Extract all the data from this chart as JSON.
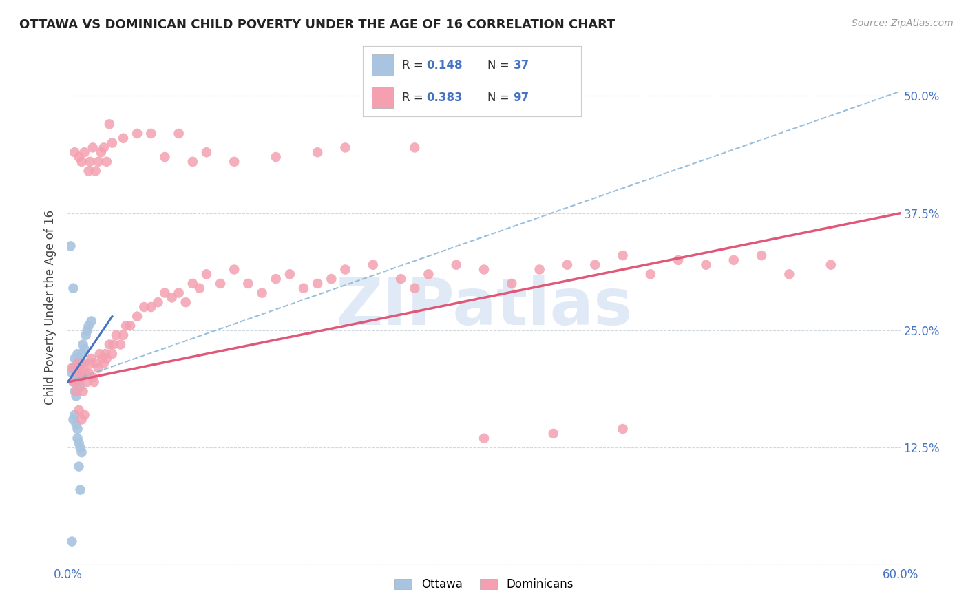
{
  "title": "OTTAWA VS DOMINICAN CHILD POVERTY UNDER THE AGE OF 16 CORRELATION CHART",
  "source": "Source: ZipAtlas.com",
  "ylabel": "Child Poverty Under the Age of 16",
  "xlim": [
    0.0,
    0.6
  ],
  "ylim": [
    0.0,
    0.55
  ],
  "ytick_pos": [
    0.0,
    0.125,
    0.25,
    0.375,
    0.5
  ],
  "ytick_labels": [
    "",
    "12.5%",
    "25.0%",
    "37.5%",
    "50.0%"
  ],
  "xtick_pos": [
    0.0,
    0.1,
    0.2,
    0.3,
    0.4,
    0.5,
    0.6
  ],
  "xtick_labels": [
    "0.0%",
    "",
    "",
    "",
    "",
    "",
    "60.0%"
  ],
  "legend_label1": "Ottawa",
  "legend_label2": "Dominicans",
  "ottawa_color": "#a8c4e0",
  "dominican_color": "#f4a0b0",
  "trendline_ottawa_color": "#4472c4",
  "trendline_dominican_color": "#e05878",
  "watermark": "ZIPatlas",
  "watermark_color": "#c8d8f0",
  "background_color": "#ffffff",
  "ottawa_trendline": [
    [
      0.0,
      0.195
    ],
    [
      0.032,
      0.265
    ]
  ],
  "dominican_trendline": [
    [
      0.0,
      0.195
    ],
    [
      0.6,
      0.375
    ]
  ],
  "dashed_trendline": [
    [
      0.0,
      0.195
    ],
    [
      0.6,
      0.505
    ]
  ],
  "ottawa_points": [
    [
      0.003,
      0.205
    ],
    [
      0.004,
      0.21
    ],
    [
      0.004,
      0.195
    ],
    [
      0.005,
      0.22
    ],
    [
      0.005,
      0.21
    ],
    [
      0.005,
      0.185
    ],
    [
      0.006,
      0.205
    ],
    [
      0.006,
      0.2
    ],
    [
      0.006,
      0.18
    ],
    [
      0.007,
      0.215
    ],
    [
      0.007,
      0.21
    ],
    [
      0.007,
      0.225
    ],
    [
      0.008,
      0.22
    ],
    [
      0.008,
      0.215
    ],
    [
      0.009,
      0.2
    ],
    [
      0.009,
      0.19
    ],
    [
      0.01,
      0.225
    ],
    [
      0.01,
      0.215
    ],
    [
      0.011,
      0.235
    ],
    [
      0.012,
      0.23
    ],
    [
      0.013,
      0.245
    ],
    [
      0.014,
      0.25
    ],
    [
      0.015,
      0.255
    ],
    [
      0.017,
      0.26
    ],
    [
      0.004,
      0.155
    ],
    [
      0.005,
      0.16
    ],
    [
      0.006,
      0.15
    ],
    [
      0.007,
      0.145
    ],
    [
      0.007,
      0.135
    ],
    [
      0.008,
      0.13
    ],
    [
      0.009,
      0.125
    ],
    [
      0.01,
      0.12
    ],
    [
      0.004,
      0.295
    ],
    [
      0.002,
      0.34
    ],
    [
      0.008,
      0.105
    ],
    [
      0.009,
      0.08
    ],
    [
      0.003,
      0.025
    ]
  ],
  "dominican_points": [
    [
      0.003,
      0.21
    ],
    [
      0.005,
      0.195
    ],
    [
      0.006,
      0.185
    ],
    [
      0.007,
      0.215
    ],
    [
      0.008,
      0.205
    ],
    [
      0.008,
      0.195
    ],
    [
      0.009,
      0.21
    ],
    [
      0.01,
      0.2
    ],
    [
      0.011,
      0.185
    ],
    [
      0.012,
      0.215
    ],
    [
      0.013,
      0.205
    ],
    [
      0.014,
      0.195
    ],
    [
      0.015,
      0.205
    ],
    [
      0.016,
      0.215
    ],
    [
      0.017,
      0.22
    ],
    [
      0.018,
      0.2
    ],
    [
      0.019,
      0.195
    ],
    [
      0.02,
      0.215
    ],
    [
      0.022,
      0.21
    ],
    [
      0.023,
      0.225
    ],
    [
      0.025,
      0.22
    ],
    [
      0.026,
      0.215
    ],
    [
      0.027,
      0.225
    ],
    [
      0.028,
      0.22
    ],
    [
      0.03,
      0.235
    ],
    [
      0.032,
      0.225
    ],
    [
      0.033,
      0.235
    ],
    [
      0.035,
      0.245
    ],
    [
      0.038,
      0.235
    ],
    [
      0.04,
      0.245
    ],
    [
      0.042,
      0.255
    ],
    [
      0.045,
      0.255
    ],
    [
      0.05,
      0.265
    ],
    [
      0.055,
      0.275
    ],
    [
      0.06,
      0.275
    ],
    [
      0.065,
      0.28
    ],
    [
      0.07,
      0.29
    ],
    [
      0.075,
      0.285
    ],
    [
      0.08,
      0.29
    ],
    [
      0.085,
      0.28
    ],
    [
      0.09,
      0.3
    ],
    [
      0.095,
      0.295
    ],
    [
      0.1,
      0.31
    ],
    [
      0.11,
      0.3
    ],
    [
      0.12,
      0.315
    ],
    [
      0.13,
      0.3
    ],
    [
      0.14,
      0.29
    ],
    [
      0.15,
      0.305
    ],
    [
      0.16,
      0.31
    ],
    [
      0.17,
      0.295
    ],
    [
      0.18,
      0.3
    ],
    [
      0.19,
      0.305
    ],
    [
      0.2,
      0.315
    ],
    [
      0.22,
      0.32
    ],
    [
      0.24,
      0.305
    ],
    [
      0.25,
      0.295
    ],
    [
      0.26,
      0.31
    ],
    [
      0.28,
      0.32
    ],
    [
      0.3,
      0.315
    ],
    [
      0.32,
      0.3
    ],
    [
      0.34,
      0.315
    ],
    [
      0.36,
      0.32
    ],
    [
      0.38,
      0.32
    ],
    [
      0.4,
      0.33
    ],
    [
      0.42,
      0.31
    ],
    [
      0.44,
      0.325
    ],
    [
      0.46,
      0.32
    ],
    [
      0.48,
      0.325
    ],
    [
      0.5,
      0.33
    ],
    [
      0.52,
      0.31
    ],
    [
      0.55,
      0.32
    ],
    [
      0.005,
      0.44
    ],
    [
      0.008,
      0.435
    ],
    [
      0.01,
      0.43
    ],
    [
      0.012,
      0.44
    ],
    [
      0.015,
      0.42
    ],
    [
      0.016,
      0.43
    ],
    [
      0.018,
      0.445
    ],
    [
      0.02,
      0.42
    ],
    [
      0.022,
      0.43
    ],
    [
      0.024,
      0.44
    ],
    [
      0.026,
      0.445
    ],
    [
      0.028,
      0.43
    ],
    [
      0.03,
      0.47
    ],
    [
      0.032,
      0.45
    ],
    [
      0.04,
      0.455
    ],
    [
      0.05,
      0.46
    ],
    [
      0.06,
      0.46
    ],
    [
      0.07,
      0.435
    ],
    [
      0.08,
      0.46
    ],
    [
      0.09,
      0.43
    ],
    [
      0.1,
      0.44
    ],
    [
      0.12,
      0.43
    ],
    [
      0.15,
      0.435
    ],
    [
      0.18,
      0.44
    ],
    [
      0.2,
      0.445
    ],
    [
      0.25,
      0.445
    ],
    [
      0.008,
      0.165
    ],
    [
      0.01,
      0.155
    ],
    [
      0.012,
      0.16
    ],
    [
      0.3,
      0.135
    ],
    [
      0.35,
      0.14
    ],
    [
      0.4,
      0.145
    ]
  ]
}
